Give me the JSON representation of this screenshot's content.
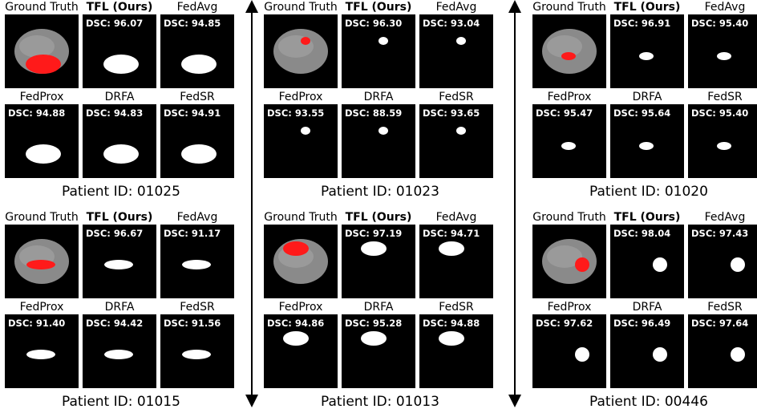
{
  "groups": [
    {
      "caption": "Patient ID: 01025",
      "panels": [
        {
          "label": "Ground Truth"
        },
        {
          "label": "TFL (Ours)",
          "dsc": "DSC: 96.07"
        },
        {
          "label": "FedAvg",
          "dsc": "DSC: 94.85"
        },
        {
          "label": "FedProx",
          "dsc": "DSC: 94.88"
        },
        {
          "label": "DRFA",
          "dsc": "DSC: 94.83"
        },
        {
          "label": "FedSR",
          "dsc": "DSC: 94.91"
        }
      ]
    },
    {
      "caption": "Patient ID: 01023",
      "panels": [
        {
          "label": "Ground Truth"
        },
        {
          "label": "TFL (Ours)",
          "dsc": "DSC: 96.30"
        },
        {
          "label": "FedAvg",
          "dsc": "DSC: 93.04"
        },
        {
          "label": "FedProx",
          "dsc": "DSC: 93.55"
        },
        {
          "label": "DRFA",
          "dsc": "DSC: 88.59"
        },
        {
          "label": "FedSR",
          "dsc": "DSC: 93.65"
        }
      ]
    },
    {
      "caption": "Patient ID: 01020",
      "panels": [
        {
          "label": "Ground Truth"
        },
        {
          "label": "TFL (Ours)",
          "dsc": "DSC: 96.91"
        },
        {
          "label": "FedAvg",
          "dsc": "DSC: 95.40"
        },
        {
          "label": "FedProx",
          "dsc": "DSC: 95.47"
        },
        {
          "label": "DRFA",
          "dsc": "DSC: 95.64"
        },
        {
          "label": "FedSR",
          "dsc": "DSC: 95.40"
        }
      ]
    },
    {
      "caption": "Patient ID: 01015",
      "panels": [
        {
          "label": "Ground Truth"
        },
        {
          "label": "TFL (Ours)",
          "dsc": "DSC: 96.67"
        },
        {
          "label": "FedAvg",
          "dsc": "DSC: 91.17"
        },
        {
          "label": "FedProx",
          "dsc": "DSC: 91.40"
        },
        {
          "label": "DRFA",
          "dsc": "DSC: 94.42"
        },
        {
          "label": "FedSR",
          "dsc": "DSC: 91.56"
        }
      ]
    },
    {
      "caption": "Patient ID: 01013",
      "panels": [
        {
          "label": "Ground Truth"
        },
        {
          "label": "TFL (Ours)",
          "dsc": "DSC: 97.19"
        },
        {
          "label": "FedAvg",
          "dsc": "DSC: 94.71"
        },
        {
          "label": "FedProx",
          "dsc": "DSC: 94.86"
        },
        {
          "label": "DRFA",
          "dsc": "DSC: 95.28"
        },
        {
          "label": "FedSR",
          "dsc": "DSC: 94.88"
        }
      ]
    },
    {
      "caption": "Patient ID: 00446",
      "panels": [
        {
          "label": "Ground Truth"
        },
        {
          "label": "TFL (Ours)",
          "dsc": "DSC: 98.04"
        },
        {
          "label": "FedAvg",
          "dsc": "DSC: 97.43"
        },
        {
          "label": "FedProx",
          "dsc": "DSC: 97.62"
        },
        {
          "label": "DRFA",
          "dsc": "DSC: 96.49"
        },
        {
          "label": "FedSR",
          "dsc": "DSC: 97.64"
        }
      ]
    }
  ]
}
